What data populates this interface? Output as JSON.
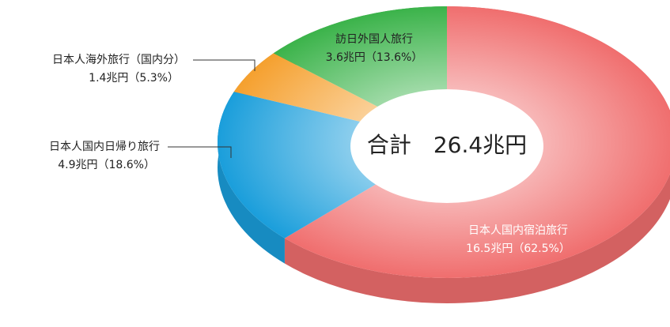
{
  "chart_data": {
    "type": "pie",
    "categories": [
      "日本人国内宿泊旅行",
      "日本人国内日帰り旅行",
      "日本人海外旅行（国内分）",
      "訪日外国人旅行"
    ],
    "values": [
      16.5,
      4.9,
      1.4,
      3.6
    ],
    "value_labels": [
      "16.5兆円（62.5%）",
      "4.9兆円（18.6%）",
      "1.4兆円（5.3%）",
      "3.6兆円（13.6%）"
    ],
    "colors": [
      "#f06e6e",
      "#1a9edb",
      "#f5a02e",
      "#3bb34a"
    ],
    "center_label": "合計　26.4兆円"
  }
}
